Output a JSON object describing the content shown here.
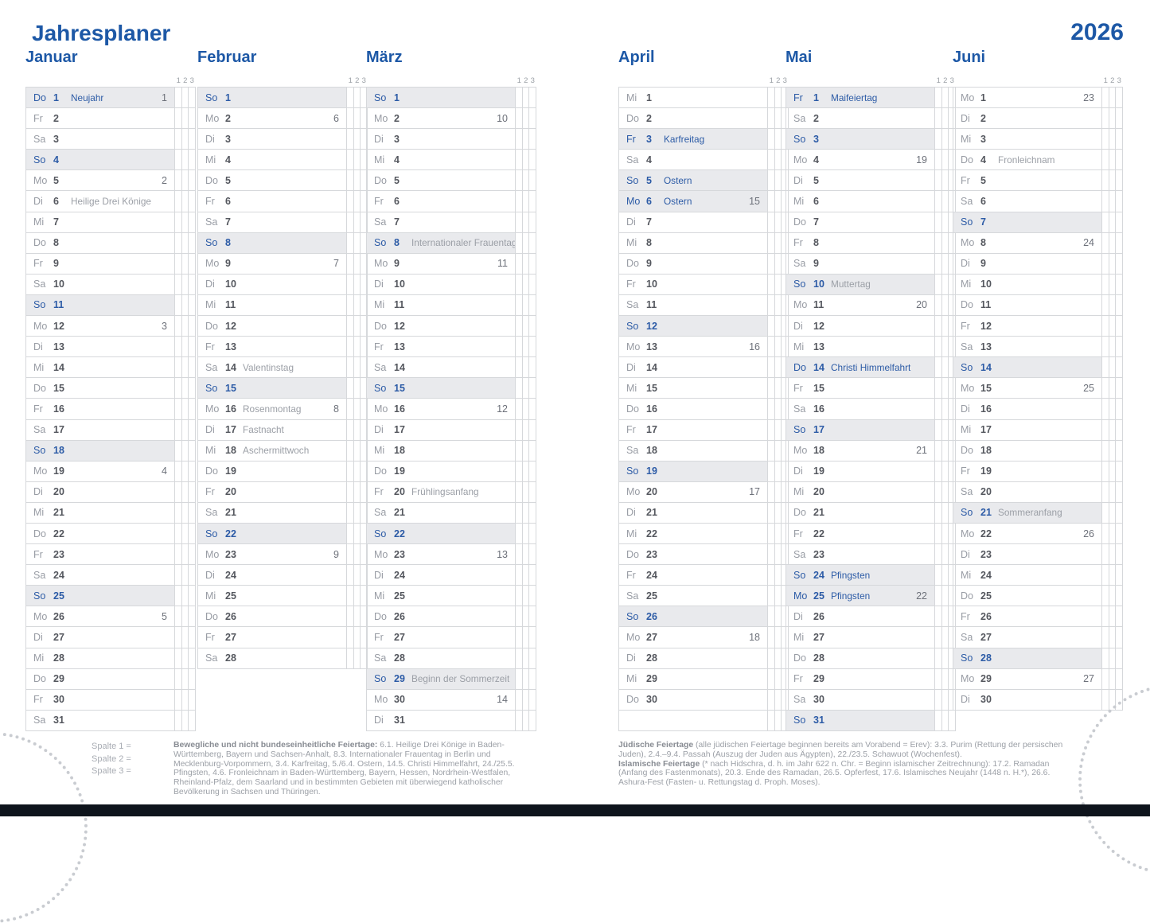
{
  "page": {
    "title": "Jahresplaner",
    "year": "2026"
  },
  "note_columns": [
    "1",
    "2",
    "3"
  ],
  "legend": {
    "items": [
      "Spalte  1  =",
      "Spalte  2  =",
      "Spalte  3  ="
    ]
  },
  "footnotes": {
    "movable": {
      "bold": "Bewegliche und nicht bundeseinheitliche Feiertage:",
      "text": "6.1. Heilige Drei Könige in Baden-Württemberg, Bayern und Sachsen-Anhalt, 8.3. Internationaler Frauentag in Berlin und Mecklenburg-Vorpommern, 3.4. Karfreitag, 5./6.4. Ostern, 14.5. Christi Himmelfahrt, 24./25.5. Pfingsten, 4.6. Fronleichnam in Baden-Württemberg, Bayern, Hessen, Nordrhein-Westfalen, Rheinland-Pfalz, dem Saarland und in bestimmten Gebieten mit überwiegend katholischer Bevölkerung in Sachsen und Thüringen."
    },
    "juedische": {
      "bold": "Jüdische Feiertage",
      "text": "(alle jüdischen Feiertage beginnen bereits am Vorabend = Erev): 3.3. Purim (Rettung der persischen Juden), 2.4.–9.4. Passah (Auszug der Juden aus Ägypten), 22./23.5. Schawuot (Wochenfest)."
    },
    "islamische": {
      "bold": "Islamische Feiertage",
      "text": "(* nach Hidschra, d. h. im Jahr 622 n. Chr. = Beginn islamischer Zeitrechnung): 17.2. Ramadan (Anfang des Fastenmonats), 20.3. Ende des Ramadan, 26.5. Opferfest, 17.6. Islamisches Neujahr (1448 n. H.*), 26.6. Ashura-Fest (Fasten- u. Rettungstag d. Proph. Moses)."
    }
  },
  "months": [
    {
      "name": "Januar",
      "days": [
        {
          "w": "Do",
          "n": "1",
          "t": "Neujahr",
          "k": "1",
          "s": "ph"
        },
        {
          "w": "Fr",
          "n": "2"
        },
        {
          "w": "Sa",
          "n": "3"
        },
        {
          "w": "So",
          "n": "4",
          "s": "su"
        },
        {
          "w": "Mo",
          "n": "5",
          "k": "2"
        },
        {
          "w": "Di",
          "n": "6",
          "t": "Heilige Drei Könige"
        },
        {
          "w": "Mi",
          "n": "7"
        },
        {
          "w": "Do",
          "n": "8"
        },
        {
          "w": "Fr",
          "n": "9"
        },
        {
          "w": "Sa",
          "n": "10"
        },
        {
          "w": "So",
          "n": "11",
          "s": "su"
        },
        {
          "w": "Mo",
          "n": "12",
          "k": "3"
        },
        {
          "w": "Di",
          "n": "13"
        },
        {
          "w": "Mi",
          "n": "14"
        },
        {
          "w": "Do",
          "n": "15"
        },
        {
          "w": "Fr",
          "n": "16"
        },
        {
          "w": "Sa",
          "n": "17"
        },
        {
          "w": "So",
          "n": "18",
          "s": "su"
        },
        {
          "w": "Mo",
          "n": "19",
          "k": "4"
        },
        {
          "w": "Di",
          "n": "20"
        },
        {
          "w": "Mi",
          "n": "21"
        },
        {
          "w": "Do",
          "n": "22"
        },
        {
          "w": "Fr",
          "n": "23"
        },
        {
          "w": "Sa",
          "n": "24"
        },
        {
          "w": "So",
          "n": "25",
          "s": "su"
        },
        {
          "w": "Mo",
          "n": "26",
          "k": "5"
        },
        {
          "w": "Di",
          "n": "27"
        },
        {
          "w": "Mi",
          "n": "28"
        },
        {
          "w": "Do",
          "n": "29"
        },
        {
          "w": "Fr",
          "n": "30"
        },
        {
          "w": "Sa",
          "n": "31"
        }
      ]
    },
    {
      "name": "Februar",
      "days": [
        {
          "w": "So",
          "n": "1",
          "s": "su"
        },
        {
          "w": "Mo",
          "n": "2",
          "k": "6"
        },
        {
          "w": "Di",
          "n": "3"
        },
        {
          "w": "Mi",
          "n": "4"
        },
        {
          "w": "Do",
          "n": "5"
        },
        {
          "w": "Fr",
          "n": "6"
        },
        {
          "w": "Sa",
          "n": "7"
        },
        {
          "w": "So",
          "n": "8",
          "s": "su"
        },
        {
          "w": "Mo",
          "n": "9",
          "k": "7"
        },
        {
          "w": "Di",
          "n": "10"
        },
        {
          "w": "Mi",
          "n": "11"
        },
        {
          "w": "Do",
          "n": "12"
        },
        {
          "w": "Fr",
          "n": "13"
        },
        {
          "w": "Sa",
          "n": "14",
          "t": "Valentinstag"
        },
        {
          "w": "So",
          "n": "15",
          "s": "su"
        },
        {
          "w": "Mo",
          "n": "16",
          "t": "Rosenmontag",
          "k": "8"
        },
        {
          "w": "Di",
          "n": "17",
          "t": "Fastnacht"
        },
        {
          "w": "Mi",
          "n": "18",
          "t": "Aschermittwoch"
        },
        {
          "w": "Do",
          "n": "19"
        },
        {
          "w": "Fr",
          "n": "20"
        },
        {
          "w": "Sa",
          "n": "21"
        },
        {
          "w": "So",
          "n": "22",
          "s": "su"
        },
        {
          "w": "Mo",
          "n": "23",
          "k": "9"
        },
        {
          "w": "Di",
          "n": "24"
        },
        {
          "w": "Mi",
          "n": "25"
        },
        {
          "w": "Do",
          "n": "26"
        },
        {
          "w": "Fr",
          "n": "27"
        },
        {
          "w": "Sa",
          "n": "28"
        }
      ]
    },
    {
      "name": "März",
      "days": [
        {
          "w": "So",
          "n": "1",
          "s": "su"
        },
        {
          "w": "Mo",
          "n": "2",
          "k": "10"
        },
        {
          "w": "Di",
          "n": "3"
        },
        {
          "w": "Mi",
          "n": "4"
        },
        {
          "w": "Do",
          "n": "5"
        },
        {
          "w": "Fr",
          "n": "6"
        },
        {
          "w": "Sa",
          "n": "7"
        },
        {
          "w": "So",
          "n": "8",
          "t": "Internationaler Frauentag",
          "s": "su"
        },
        {
          "w": "Mo",
          "n": "9",
          "k": "11"
        },
        {
          "w": "Di",
          "n": "10"
        },
        {
          "w": "Mi",
          "n": "11"
        },
        {
          "w": "Do",
          "n": "12"
        },
        {
          "w": "Fr",
          "n": "13"
        },
        {
          "w": "Sa",
          "n": "14"
        },
        {
          "w": "So",
          "n": "15",
          "s": "su"
        },
        {
          "w": "Mo",
          "n": "16",
          "k": "12"
        },
        {
          "w": "Di",
          "n": "17"
        },
        {
          "w": "Mi",
          "n": "18"
        },
        {
          "w": "Do",
          "n": "19"
        },
        {
          "w": "Fr",
          "n": "20",
          "t": "Frühlingsanfang"
        },
        {
          "w": "Sa",
          "n": "21"
        },
        {
          "w": "So",
          "n": "22",
          "s": "su"
        },
        {
          "w": "Mo",
          "n": "23",
          "k": "13"
        },
        {
          "w": "Di",
          "n": "24"
        },
        {
          "w": "Mi",
          "n": "25"
        },
        {
          "w": "Do",
          "n": "26"
        },
        {
          "w": "Fr",
          "n": "27"
        },
        {
          "w": "Sa",
          "n": "28"
        },
        {
          "w": "So",
          "n": "29",
          "t": "Beginn der Sommerzeit",
          "s": "su"
        },
        {
          "w": "Mo",
          "n": "30",
          "k": "14"
        },
        {
          "w": "Di",
          "n": "31"
        }
      ]
    },
    {
      "name": "April",
      "days": [
        {
          "w": "Mi",
          "n": "1"
        },
        {
          "w": "Do",
          "n": "2"
        },
        {
          "w": "Fr",
          "n": "3",
          "t": "Karfreitag",
          "s": "ph"
        },
        {
          "w": "Sa",
          "n": "4"
        },
        {
          "w": "So",
          "n": "5",
          "t": "Ostern",
          "s": "ph"
        },
        {
          "w": "Mo",
          "n": "6",
          "t": "Ostern",
          "k": "15",
          "s": "ph"
        },
        {
          "w": "Di",
          "n": "7"
        },
        {
          "w": "Mi",
          "n": "8"
        },
        {
          "w": "Do",
          "n": "9"
        },
        {
          "w": "Fr",
          "n": "10"
        },
        {
          "w": "Sa",
          "n": "11"
        },
        {
          "w": "So",
          "n": "12",
          "s": "su"
        },
        {
          "w": "Mo",
          "n": "13",
          "k": "16"
        },
        {
          "w": "Di",
          "n": "14"
        },
        {
          "w": "Mi",
          "n": "15"
        },
        {
          "w": "Do",
          "n": "16"
        },
        {
          "w": "Fr",
          "n": "17"
        },
        {
          "w": "Sa",
          "n": "18"
        },
        {
          "w": "So",
          "n": "19",
          "s": "su"
        },
        {
          "w": "Mo",
          "n": "20",
          "k": "17"
        },
        {
          "w": "Di",
          "n": "21"
        },
        {
          "w": "Mi",
          "n": "22"
        },
        {
          "w": "Do",
          "n": "23"
        },
        {
          "w": "Fr",
          "n": "24"
        },
        {
          "w": "Sa",
          "n": "25"
        },
        {
          "w": "So",
          "n": "26",
          "s": "su"
        },
        {
          "w": "Mo",
          "n": "27",
          "k": "18"
        },
        {
          "w": "Di",
          "n": "28"
        },
        {
          "w": "Mi",
          "n": "29"
        },
        {
          "w": "Do",
          "n": "30"
        },
        {
          "w": "",
          "n": "",
          "s": "e"
        }
      ]
    },
    {
      "name": "Mai",
      "days": [
        {
          "w": "Fr",
          "n": "1",
          "t": "Maifeiertag",
          "s": "ph"
        },
        {
          "w": "Sa",
          "n": "2"
        },
        {
          "w": "So",
          "n": "3",
          "s": "su"
        },
        {
          "w": "Mo",
          "n": "4",
          "k": "19"
        },
        {
          "w": "Di",
          "n": "5"
        },
        {
          "w": "Mi",
          "n": "6"
        },
        {
          "w": "Do",
          "n": "7"
        },
        {
          "w": "Fr",
          "n": "8"
        },
        {
          "w": "Sa",
          "n": "9"
        },
        {
          "w": "So",
          "n": "10",
          "t": "Muttertag",
          "s": "su"
        },
        {
          "w": "Mo",
          "n": "11",
          "k": "20"
        },
        {
          "w": "Di",
          "n": "12"
        },
        {
          "w": "Mi",
          "n": "13"
        },
        {
          "w": "Do",
          "n": "14",
          "t": "Christi Himmelfahrt",
          "s": "ph"
        },
        {
          "w": "Fr",
          "n": "15"
        },
        {
          "w": "Sa",
          "n": "16"
        },
        {
          "w": "So",
          "n": "17",
          "s": "su"
        },
        {
          "w": "Mo",
          "n": "18",
          "k": "21"
        },
        {
          "w": "Di",
          "n": "19"
        },
        {
          "w": "Mi",
          "n": "20"
        },
        {
          "w": "Do",
          "n": "21"
        },
        {
          "w": "Fr",
          "n": "22"
        },
        {
          "w": "Sa",
          "n": "23"
        },
        {
          "w": "So",
          "n": "24",
          "t": "Pfingsten",
          "s": "ph"
        },
        {
          "w": "Mo",
          "n": "25",
          "t": "Pfingsten",
          "k": "22",
          "s": "ph"
        },
        {
          "w": "Di",
          "n": "26"
        },
        {
          "w": "Mi",
          "n": "27"
        },
        {
          "w": "Do",
          "n": "28"
        },
        {
          "w": "Fr",
          "n": "29"
        },
        {
          "w": "Sa",
          "n": "30"
        },
        {
          "w": "So",
          "n": "31",
          "s": "su"
        }
      ]
    },
    {
      "name": "Juni",
      "days": [
        {
          "w": "Mo",
          "n": "1",
          "k": "23"
        },
        {
          "w": "Di",
          "n": "2"
        },
        {
          "w": "Mi",
          "n": "3"
        },
        {
          "w": "Do",
          "n": "4",
          "t": "Fronleichnam"
        },
        {
          "w": "Fr",
          "n": "5"
        },
        {
          "w": "Sa",
          "n": "6"
        },
        {
          "w": "So",
          "n": "7",
          "s": "su"
        },
        {
          "w": "Mo",
          "n": "8",
          "k": "24"
        },
        {
          "w": "Di",
          "n": "9"
        },
        {
          "w": "Mi",
          "n": "10"
        },
        {
          "w": "Do",
          "n": "11"
        },
        {
          "w": "Fr",
          "n": "12"
        },
        {
          "w": "Sa",
          "n": "13"
        },
        {
          "w": "So",
          "n": "14",
          "s": "su"
        },
        {
          "w": "Mo",
          "n": "15",
          "k": "25"
        },
        {
          "w": "Di",
          "n": "16"
        },
        {
          "w": "Mi",
          "n": "17"
        },
        {
          "w": "Do",
          "n": "18"
        },
        {
          "w": "Fr",
          "n": "19"
        },
        {
          "w": "Sa",
          "n": "20"
        },
        {
          "w": "So",
          "n": "21",
          "t": "Sommeranfang",
          "s": "su"
        },
        {
          "w": "Mo",
          "n": "22",
          "k": "26"
        },
        {
          "w": "Di",
          "n": "23"
        },
        {
          "w": "Mi",
          "n": "24"
        },
        {
          "w": "Do",
          "n": "25"
        },
        {
          "w": "Fr",
          "n": "26"
        },
        {
          "w": "Sa",
          "n": "27"
        },
        {
          "w": "So",
          "n": "28",
          "s": "su"
        },
        {
          "w": "Mo",
          "n": "29",
          "k": "27"
        },
        {
          "w": "Di",
          "n": "30"
        }
      ]
    }
  ]
}
